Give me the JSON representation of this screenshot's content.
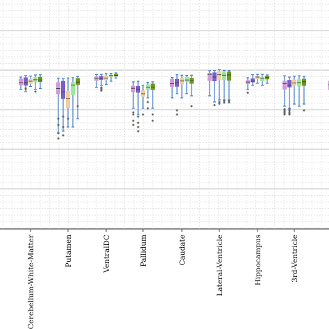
{
  "chart_data": {
    "type": "box",
    "title": "",
    "xlabel": "",
    "ylabel": "",
    "ylim": [
      0,
      1
    ],
    "grid": true,
    "legend": "none",
    "categories": [
      "",
      "Cerebellum-White-Matter",
      "Putamen",
      "VentralDC",
      "Pallidum",
      "Caudate",
      "Lateral-Ventricle",
      "Hippocampus",
      "3rd-Ventricle",
      ""
    ],
    "series_colors": [
      "#d49ad8",
      "#7a5fc8",
      "#efcea0",
      "#9ee89a",
      "#6e9a1a"
    ],
    "whisker_color": "#3d7cc7",
    "outlier_color": "#666666",
    "groups": [
      {
        "category": "",
        "boxes": [
          {
            "low": 0.86,
            "q1": 0.865,
            "median": 0.869,
            "q3": 0.875,
            "high": 0.88,
            "outliers": []
          }
        ]
      },
      {
        "category": "Cerebellum-White-Matter",
        "boxes": [
          {
            "low": 0.82,
            "q1": 0.84,
            "median": 0.853,
            "q3": 0.872,
            "high": 0.88,
            "outliers": []
          },
          {
            "low": 0.81,
            "q1": 0.839,
            "median": 0.853,
            "q3": 0.878,
            "high": 0.887,
            "outliers": [
              0.826,
              0.822
            ]
          },
          {
            "low": 0.835,
            "q1": 0.848,
            "median": 0.86,
            "q3": 0.872,
            "high": 0.885,
            "outliers": []
          },
          {
            "low": 0.82,
            "q1": 0.855,
            "median": 0.867,
            "q3": 0.88,
            "high": 0.89,
            "outliers": [
              0.81
            ]
          },
          {
            "low": 0.825,
            "q1": 0.856,
            "median": 0.866,
            "q3": 0.881,
            "high": 0.891,
            "outliers": []
          }
        ]
      },
      {
        "category": "Putamen",
        "boxes": [
          {
            "low": 0.612,
            "q1": 0.797,
            "median": 0.825,
            "q3": 0.855,
            "high": 0.875,
            "outliers": [
              0.585,
              0.61,
              0.65,
              0.68
            ]
          },
          {
            "low": 0.62,
            "q1": 0.775,
            "median": 0.808,
            "q3": 0.861,
            "high": 0.872,
            "outliers": [
              0.6,
              0.64,
              0.69
            ]
          },
          {
            "low": 0.64,
            "q1": 0.73,
            "median": 0.777,
            "q3": 0.813,
            "high": 0.876,
            "outliers": [
              0.68
            ]
          },
          {
            "low": 0.64,
            "q1": 0.794,
            "median": 0.841,
            "q3": 0.855,
            "high": 0.877,
            "outliers": []
          },
          {
            "low": 0.68,
            "q1": 0.842,
            "median": 0.856,
            "q3": 0.875,
            "high": 0.882,
            "outliers": [
              0.74
            ]
          }
        ]
      },
      {
        "category": "VentralDC",
        "boxes": [
          {
            "low": 0.83,
            "q1": 0.862,
            "median": 0.873,
            "q3": 0.884,
            "high": 0.892,
            "outliers": []
          },
          {
            "low": 0.84,
            "q1": 0.867,
            "median": 0.874,
            "q3": 0.885,
            "high": 0.893,
            "outliers": [
              0.815,
              0.82,
              0.825,
              0.83
            ]
          },
          {
            "low": 0.845,
            "q1": 0.865,
            "median": 0.875,
            "q3": 0.887,
            "high": 0.897,
            "outliers": []
          },
          {
            "low": 0.86,
            "q1": 0.881,
            "median": 0.887,
            "q3": 0.891,
            "high": 0.898,
            "outliers": []
          },
          {
            "low": 0.875,
            "q1": 0.884,
            "median": 0.888,
            "q3": 0.895,
            "high": 0.9,
            "outliers": []
          }
        ]
      },
      {
        "category": "Pallidum",
        "boxes": [
          {
            "low": 0.73,
            "q1": 0.807,
            "median": 0.826,
            "q3": 0.838,
            "high": 0.857,
            "outliers": [
              0.65,
              0.67,
              0.7,
              0.71
            ]
          },
          {
            "low": 0.7,
            "q1": 0.805,
            "median": 0.822,
            "q3": 0.837,
            "high": 0.86,
            "outliers": [
              0.62,
              0.64,
              0.66,
              0.69
            ]
          },
          {
            "low": 0.73,
            "q1": 0.785,
            "median": 0.8,
            "q3": 0.816,
            "high": 0.84,
            "outliers": [
              0.7
            ]
          },
          {
            "low": 0.78,
            "q1": 0.818,
            "median": 0.831,
            "q3": 0.844,
            "high": 0.855,
            "outliers": [
              0.73,
              0.76
            ]
          },
          {
            "low": 0.73,
            "q1": 0.818,
            "median": 0.832,
            "q3": 0.848,
            "high": 0.857,
            "outliers": [
              0.67,
              0.7
            ]
          }
        ]
      },
      {
        "category": "Caudate",
        "boxes": [
          {
            "low": 0.78,
            "q1": 0.832,
            "median": 0.848,
            "q3": 0.871,
            "high": 0.878,
            "outliers": []
          },
          {
            "low": 0.8,
            "q1": 0.834,
            "median": 0.853,
            "q3": 0.871,
            "high": 0.891,
            "outliers": [
              0.7,
              0.72
            ]
          },
          {
            "low": 0.78,
            "q1": 0.845,
            "median": 0.861,
            "q3": 0.876,
            "high": 0.889,
            "outliers": []
          },
          {
            "low": 0.8,
            "q1": 0.856,
            "median": 0.866,
            "q3": 0.88,
            "high": 0.888,
            "outliers": []
          },
          {
            "low": 0.79,
            "q1": 0.848,
            "median": 0.862,
            "q3": 0.876,
            "high": 0.889,
            "outliers": [
              0.74
            ]
          }
        ]
      },
      {
        "category": "Lateral-Ventricle",
        "boxes": [
          {
            "low": 0.79,
            "q1": 0.862,
            "median": 0.893,
            "q3": 0.9,
            "high": 0.91,
            "outliers": []
          },
          {
            "low": 0.76,
            "q1": 0.86,
            "median": 0.88,
            "q3": 0.902,
            "high": 0.911,
            "outliers": [
              0.745
            ]
          },
          {
            "low": 0.77,
            "q1": 0.865,
            "median": 0.891,
            "q3": 0.908,
            "high": 0.915,
            "outliers": [
              0.752,
              0.76
            ]
          },
          {
            "low": 0.77,
            "q1": 0.866,
            "median": 0.889,
            "q3": 0.908,
            "high": 0.912,
            "outliers": [
              0.757,
              0.765
            ]
          },
          {
            "low": 0.77,
            "q1": 0.863,
            "median": 0.89,
            "q3": 0.906,
            "high": 0.911,
            "outliers": [
              0.758,
              0.764
            ]
          }
        ]
      },
      {
        "category": "Hippocampus",
        "boxes": [
          {
            "low": 0.82,
            "q1": 0.847,
            "median": 0.856,
            "q3": 0.865,
            "high": 0.877,
            "outliers": [
              0.805
            ]
          },
          {
            "low": 0.84,
            "q1": 0.855,
            "median": 0.86,
            "q3": 0.873,
            "high": 0.891,
            "outliers": []
          },
          {
            "low": 0.85,
            "q1": 0.87,
            "median": 0.88,
            "q3": 0.884,
            "high": 0.893,
            "outliers": []
          },
          {
            "low": 0.84,
            "q1": 0.86,
            "median": 0.874,
            "q3": 0.881,
            "high": 0.893,
            "outliers": []
          },
          {
            "low": 0.85,
            "q1": 0.869,
            "median": 0.879,
            "q3": 0.885,
            "high": 0.89,
            "outliers": []
          }
        ]
      },
      {
        "category": "3rd-Ventricle",
        "boxes": [
          {
            "low": 0.74,
            "q1": 0.82,
            "median": 0.848,
            "q3": 0.862,
            "high": 0.886,
            "outliers": [
              0.7,
              0.705,
              0.71,
              0.715,
              0.72,
              0.725
            ]
          },
          {
            "low": 0.73,
            "q1": 0.83,
            "median": 0.84,
            "q3": 0.866,
            "high": 0.88,
            "outliers": [
              0.7,
              0.705,
              0.71,
              0.718,
              0.725
            ]
          },
          {
            "low": 0.75,
            "q1": 0.838,
            "median": 0.851,
            "q3": 0.868,
            "high": 0.884,
            "outliers": []
          },
          {
            "low": 0.74,
            "q1": 0.835,
            "median": 0.853,
            "q3": 0.869,
            "high": 0.886,
            "outliers": []
          },
          {
            "low": 0.75,
            "q1": 0.838,
            "median": 0.857,
            "q3": 0.871,
            "high": 0.883,
            "outliers": [
              0.72
            ]
          }
        ]
      },
      {
        "category": "",
        "boxes": [
          {
            "low": 0.74,
            "q1": 0.818,
            "median": 0.843,
            "q3": 0.862,
            "high": 0.88,
            "outliers": []
          }
        ]
      }
    ]
  }
}
